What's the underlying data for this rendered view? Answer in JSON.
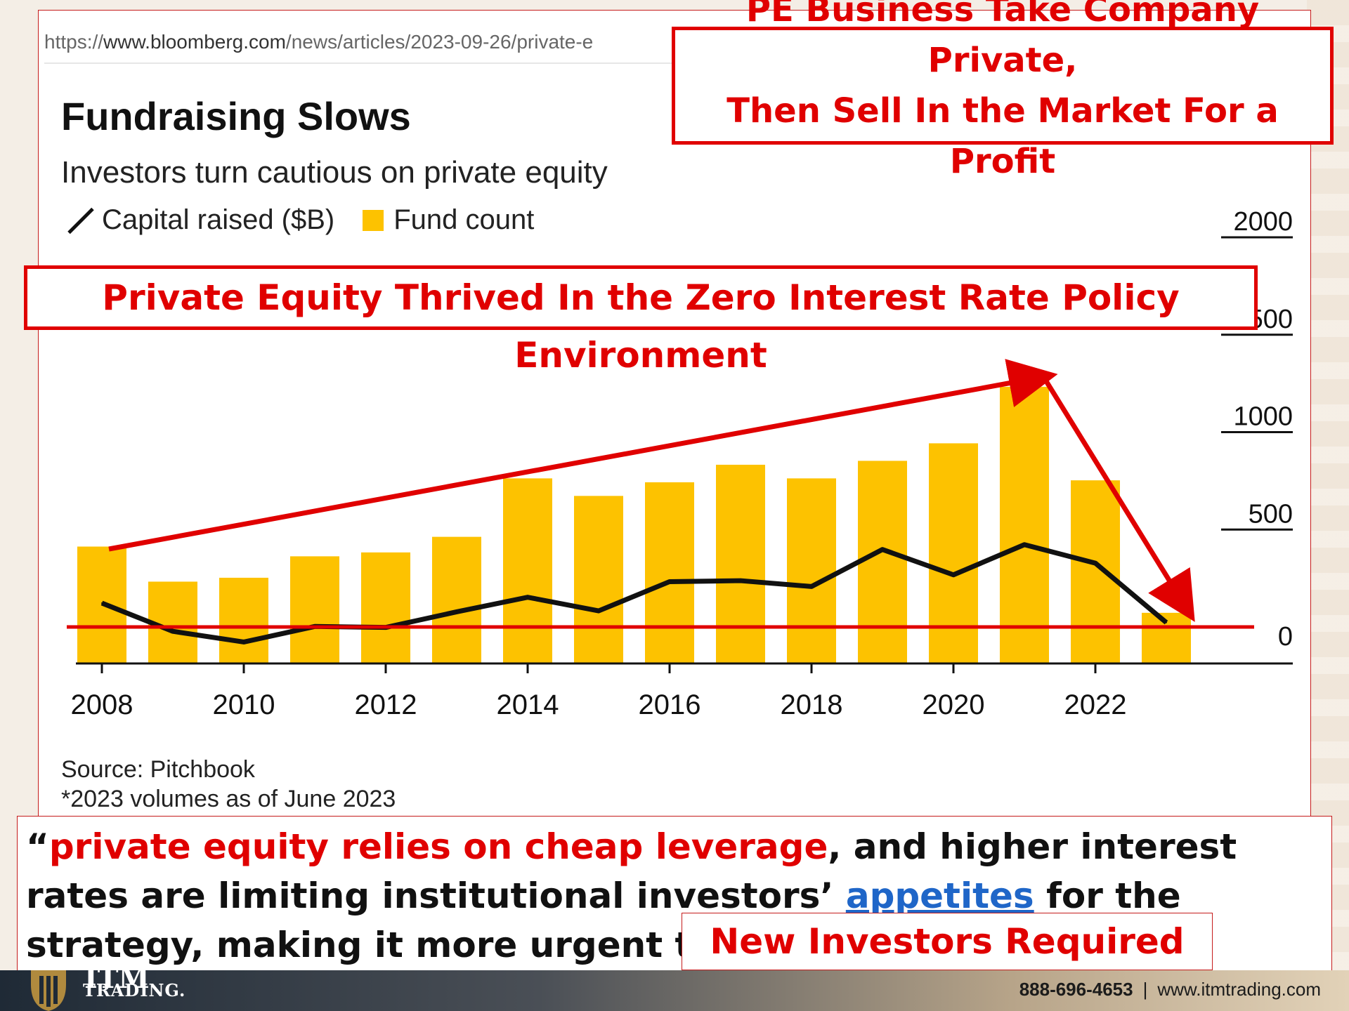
{
  "browser": {
    "url_prefix": "https://",
    "url_host": "www.bloomberg.com",
    "url_path": "/news/articles/2023-09-26/private-e"
  },
  "chart_data": {
    "type": "bar",
    "title": "Fundraising Slows",
    "subtitle": "Investors turn cautious on private equity",
    "legend": [
      "Capital raised ($B)",
      "Fund count"
    ],
    "x": [
      2008,
      2009,
      2010,
      2011,
      2012,
      2013,
      2014,
      2015,
      2016,
      2017,
      2018,
      2019,
      2020,
      2021,
      2022,
      2023
    ],
    "x_tick_labels": [
      "2008",
      "2010",
      "2012",
      "2014",
      "2016",
      "2018",
      "2020",
      "2022"
    ],
    "y_tick_labels": [
      "0",
      "500",
      "1000",
      "1500",
      "2000"
    ],
    "ylim": [
      -200,
      2100
    ],
    "series": [
      {
        "name": "Fund count",
        "type": "bar",
        "color": "#fdc200",
        "values": [
          600,
          420,
          440,
          550,
          570,
          650,
          950,
          860,
          930,
          1020,
          950,
          1040,
          1130,
          1420,
          940,
          260
        ]
      },
      {
        "name": "Capital raised ($B)",
        "type": "line",
        "color": "#111111",
        "values": [
          310,
          165,
          110,
          190,
          185,
          265,
          340,
          270,
          420,
          425,
          395,
          585,
          455,
          610,
          515,
          210
        ]
      }
    ],
    "source": "Source: Pitchbook",
    "footnote": "*2023 volumes as of June 2023"
  },
  "annotations": {
    "top_callout_line1": "PE Business Take Company Private,",
    "top_callout_line2": "Then Sell In the Market For a Profit",
    "mid_callout": "Private Equity Thrived In the Zero Interest Rate Policy Environment",
    "new_investors": "New Investors Required",
    "accent_color": "#e00000"
  },
  "quote": {
    "open": "“",
    "highlight": "private equity relies on cheap leverage",
    "part1": ", and higher interest rates are limiting institutional investors’ ",
    "link_text": "appetites",
    "part2": " for the strategy, making it more urgent to find new fields to plow.”"
  },
  "footer": {
    "logo_top": "ITM",
    "logo_text": "TRADING.",
    "phone": "888-696-4653",
    "separator": "|",
    "website": "www.itmtrading.com"
  }
}
